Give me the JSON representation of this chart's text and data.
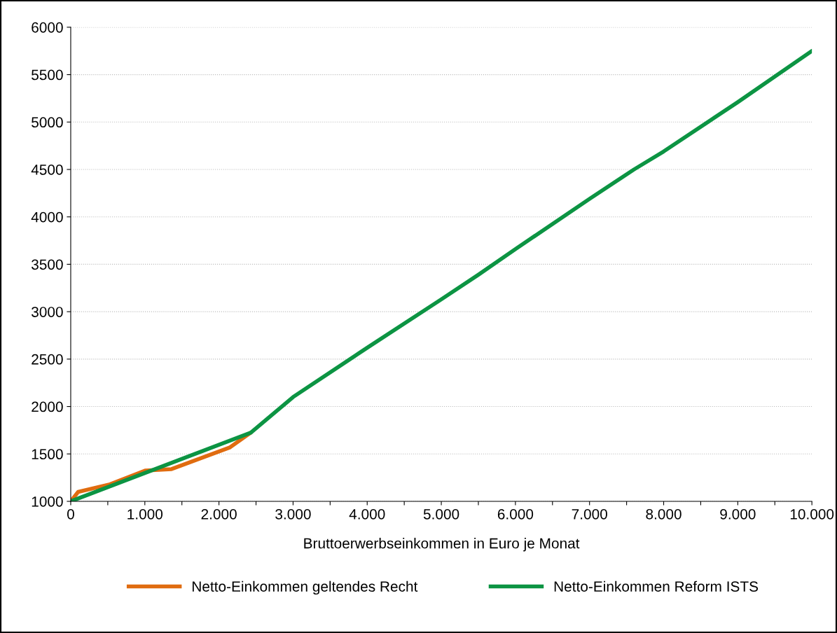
{
  "chart_data": {
    "type": "line",
    "xlabel": "Bruttoerwerbseinkommen in Euro je Monat",
    "xlim": [
      0,
      10000
    ],
    "xticks": [
      0,
      {
        "value": 500,
        "label": null
      },
      {
        "value": 1000,
        "label": "1.000"
      },
      {
        "value": 1500,
        "label": null
      },
      {
        "value": 2000,
        "label": "2.000"
      },
      {
        "value": 2500,
        "label": null
      },
      {
        "value": 3000,
        "label": "3.000"
      },
      {
        "value": 3500,
        "label": null
      },
      {
        "value": 4000,
        "label": "4.000"
      },
      {
        "value": 4500,
        "label": null
      },
      {
        "value": 5000,
        "label": "5.000"
      },
      {
        "value": 5500,
        "label": null
      },
      {
        "value": 6000,
        "label": "6.000"
      },
      {
        "value": 6500,
        "label": null
      },
      {
        "value": 7000,
        "label": "7.000"
      },
      {
        "value": 7500,
        "label": null
      },
      {
        "value": 8000,
        "label": "8.000"
      },
      {
        "value": 8500,
        "label": null
      },
      {
        "value": 9000,
        "label": "9.000"
      },
      {
        "value": 9500,
        "label": null
      },
      {
        "value": 10000,
        "label": "10.000"
      }
    ],
    "ylim": [
      1000,
      6000
    ],
    "yticks": [
      1000,
      1500,
      2000,
      2500,
      3000,
      3500,
      4000,
      4500,
      5000,
      5500,
      6000
    ],
    "grid": "y",
    "legend": "bottom",
    "marker": "none",
    "line_style": "solid",
    "series": [
      {
        "name": "Netto-Einkommen geltendes Recht",
        "color": "#e06c10",
        "x": [
          0,
          100,
          530,
          1010,
          1360,
          2150,
          2430
        ],
        "values": [
          1000,
          1100,
          1180,
          1325,
          1340,
          1570,
          1725
        ]
      },
      {
        "name": "Netto-Einkommen Reform ISTS",
        "color": "#0c9443",
        "x": [
          0,
          2430,
          3000,
          4000,
          5000,
          5500,
          6000,
          7000,
          7600,
          8000,
          9000,
          10000
        ],
        "values": [
          1000,
          1725,
          2100,
          2620,
          3130,
          3390,
          3660,
          4190,
          4500,
          4690,
          5210,
          5750
        ]
      }
    ]
  }
}
